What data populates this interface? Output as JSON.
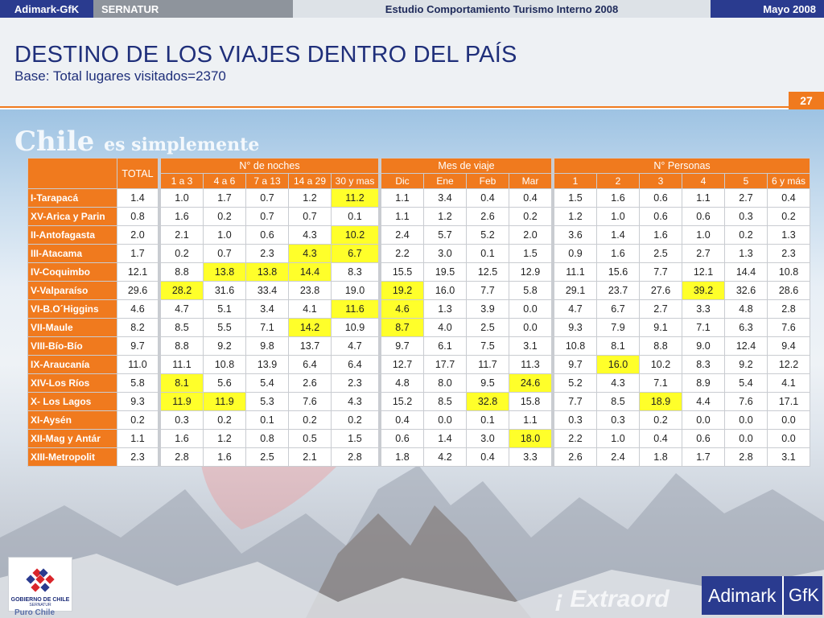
{
  "topbar": {
    "brand": "Adimark-GfK",
    "client": "SERNATUR",
    "study": "Estudio Comportamiento Turismo Interno 2008",
    "date": "Mayo 2008"
  },
  "header": {
    "title": "DESTINO DE LOS VIAJES DENTRO DEL PAÍS",
    "subtitle": "Base: Total lugares visitados=2370",
    "page_number": "27"
  },
  "background": {
    "slogan": "Chile",
    "slogan_rest": "es simplemente",
    "extra": "¡ Extraord"
  },
  "table": {
    "total_label": "TOTAL",
    "groups": [
      "N° de noches",
      "Mes de viaje",
      "N° Personas"
    ],
    "noches_cols": [
      "1 a 3",
      "4 a 6",
      "7 a 13",
      "14 a 29",
      "30 y mas"
    ],
    "mes_cols": [
      "Dic",
      "Ene",
      "Feb",
      "Mar"
    ],
    "personas_cols": [
      "1",
      "2",
      "3",
      "4",
      "5",
      "6 y más"
    ],
    "highlight_color": "#ffff2a",
    "rows": [
      {
        "label": "I-Tarapacá",
        "total": "1.4",
        "noches": [
          "1.0",
          "1.7",
          "0.7",
          "1.2",
          "11.2"
        ],
        "mes": [
          "1.1",
          "3.4",
          "0.4",
          "0.4"
        ],
        "personas": [
          "1.5",
          "1.6",
          "0.6",
          "1.1",
          "2.7",
          "0.4"
        ],
        "hl": [
          "n4"
        ]
      },
      {
        "label": "XV-Arica y Parin",
        "total": "0.8",
        "noches": [
          "1.6",
          "0.2",
          "0.7",
          "0.7",
          "0.1"
        ],
        "mes": [
          "1.1",
          "1.2",
          "2.6",
          "0.2"
        ],
        "personas": [
          "1.2",
          "1.0",
          "0.6",
          "0.6",
          "0.3",
          "0.2"
        ],
        "hl": []
      },
      {
        "label": "II-Antofagasta",
        "total": "2.0",
        "noches": [
          "2.1",
          "1.0",
          "0.6",
          "4.3",
          "10.2"
        ],
        "mes": [
          "2.4",
          "5.7",
          "5.2",
          "2.0"
        ],
        "personas": [
          "3.6",
          "1.4",
          "1.6",
          "1.0",
          "0.2",
          "1.3"
        ],
        "hl": [
          "n4"
        ]
      },
      {
        "label": "III-Atacama",
        "total": "1.7",
        "noches": [
          "0.2",
          "0.7",
          "2.3",
          "4.3",
          "6.7"
        ],
        "mes": [
          "2.2",
          "3.0",
          "0.1",
          "1.5"
        ],
        "personas": [
          "0.9",
          "1.6",
          "2.5",
          "2.7",
          "1.3",
          "2.3"
        ],
        "hl": [
          "n3",
          "n4"
        ]
      },
      {
        "label": "IV-Coquimbo",
        "total": "12.1",
        "noches": [
          "8.8",
          "13.8",
          "13.8",
          "14.4",
          "8.3"
        ],
        "mes": [
          "15.5",
          "19.5",
          "12.5",
          "12.9"
        ],
        "personas": [
          "11.1",
          "15.6",
          "7.7",
          "12.1",
          "14.4",
          "10.8"
        ],
        "hl": [
          "n1",
          "n2",
          "n3"
        ]
      },
      {
        "label": "V-Valparaíso",
        "total": "29.6",
        "noches": [
          "28.2",
          "31.6",
          "33.4",
          "23.8",
          "19.0"
        ],
        "mes": [
          "19.2",
          "16.0",
          "7.7",
          "5.8"
        ],
        "personas": [
          "29.1",
          "23.7",
          "27.6",
          "39.2",
          "32.6",
          "28.6"
        ],
        "hl": [
          "n0",
          "m0",
          "p3"
        ]
      },
      {
        "label": "VI-B.O´Higgins",
        "total": "4.6",
        "noches": [
          "4.7",
          "5.1",
          "3.4",
          "4.1",
          "11.6"
        ],
        "mes": [
          "4.6",
          "1.3",
          "3.9",
          "0.0"
        ],
        "personas": [
          "4.7",
          "6.7",
          "2.7",
          "3.3",
          "4.8",
          "2.8"
        ],
        "hl": [
          "n4",
          "m0"
        ]
      },
      {
        "label": "VII-Maule",
        "total": "8.2",
        "noches": [
          "8.5",
          "5.5",
          "7.1",
          "14.2",
          "10.9"
        ],
        "mes": [
          "8.7",
          "4.0",
          "2.5",
          "0.0"
        ],
        "personas": [
          "9.3",
          "7.9",
          "9.1",
          "7.1",
          "6.3",
          "7.6"
        ],
        "hl": [
          "n3",
          "m0"
        ]
      },
      {
        "label": "VIII-Bío-Bío",
        "total": "9.7",
        "noches": [
          "8.8",
          "9.2",
          "9.8",
          "13.7",
          "4.7"
        ],
        "mes": [
          "9.7",
          "6.1",
          "7.5",
          "3.1"
        ],
        "personas": [
          "10.8",
          "8.1",
          "8.8",
          "9.0",
          "12.4",
          "9.4"
        ],
        "hl": []
      },
      {
        "label": "IX-Araucanía",
        "total": "11.0",
        "noches": [
          "11.1",
          "10.8",
          "13.9",
          "6.4",
          "6.4"
        ],
        "mes": [
          "12.7",
          "17.7",
          "11.7",
          "11.3"
        ],
        "personas": [
          "9.7",
          "16.0",
          "10.2",
          "8.3",
          "9.2",
          "12.2"
        ],
        "hl": [
          "p1"
        ]
      },
      {
        "label": "XIV-Los Ríos",
        "total": "5.8",
        "noches": [
          "8.1",
          "5.6",
          "5.4",
          "2.6",
          "2.3"
        ],
        "mes": [
          "4.8",
          "8.0",
          "9.5",
          "24.6"
        ],
        "personas": [
          "5.2",
          "4.3",
          "7.1",
          "8.9",
          "5.4",
          "4.1"
        ],
        "hl": [
          "n0",
          "m3"
        ]
      },
      {
        "label": "X- Los Lagos",
        "total": "9.3",
        "noches": [
          "11.9",
          "11.9",
          "5.3",
          "7.6",
          "4.3"
        ],
        "mes": [
          "15.2",
          "8.5",
          "32.8",
          "15.8"
        ],
        "personas": [
          "7.7",
          "8.5",
          "18.9",
          "4.4",
          "7.6",
          "17.1"
        ],
        "hl": [
          "n0",
          "n1",
          "m2",
          "p2"
        ]
      },
      {
        "label": "XI-Aysén",
        "total": "0.2",
        "noches": [
          "0.3",
          "0.2",
          "0.1",
          "0.2",
          "0.2"
        ],
        "mes": [
          "0.4",
          "0.0",
          "0.1",
          "1.1"
        ],
        "personas": [
          "0.3",
          "0.3",
          "0.2",
          "0.0",
          "0.0",
          "0.0"
        ],
        "hl": []
      },
      {
        "label": "XII-Mag y Antár",
        "total": "1.1",
        "noches": [
          "1.6",
          "1.2",
          "0.8",
          "0.5",
          "1.5"
        ],
        "mes": [
          "0.6",
          "1.4",
          "3.0",
          "18.0"
        ],
        "personas": [
          "2.2",
          "1.0",
          "0.4",
          "0.6",
          "0.0",
          "0.0"
        ],
        "hl": [
          "m3"
        ]
      },
      {
        "label": "XIII-Metropolit",
        "total": "2.3",
        "noches": [
          "2.8",
          "1.6",
          "2.5",
          "2.1",
          "2.8"
        ],
        "mes": [
          "1.8",
          "4.2",
          "0.4",
          "3.3"
        ],
        "personas": [
          "2.6",
          "2.4",
          "1.8",
          "1.7",
          "2.8",
          "3.1"
        ],
        "hl": []
      }
    ]
  },
  "footer": {
    "gob_line1": "GOBIERNO DE CHILE",
    "gob_line2": "SERNATUR",
    "puro": "Puro Chile",
    "adimark": "Adimark",
    "gfk": "GfK"
  }
}
